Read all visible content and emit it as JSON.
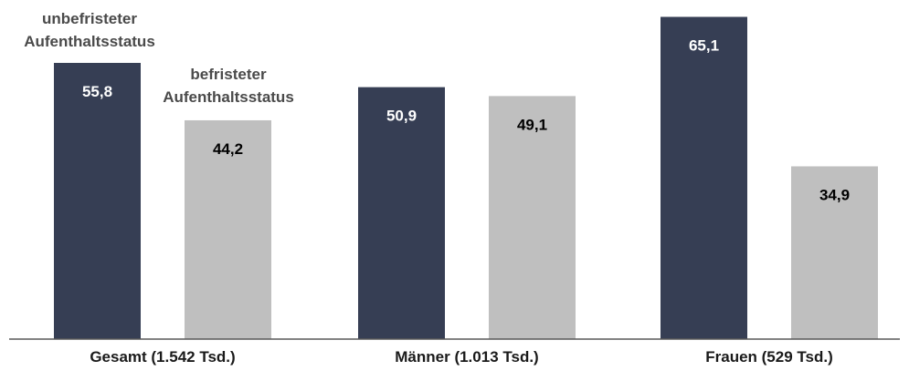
{
  "chart_data": {
    "type": "bar",
    "categories": [
      "Gesamt (1.542 Tsd.)",
      "Männer (1.013 Tsd.)",
      "Frauen (529 Tsd.)"
    ],
    "series": [
      {
        "name": "unbefristeter Aufenthaltsstatus",
        "name_lines": [
          "unbefristeter",
          "Aufenthaltsstatus"
        ],
        "values": [
          55.8,
          50.9,
          65.1
        ],
        "labels": [
          "55,8",
          "50,9",
          "65,1"
        ],
        "color": "#363e54",
        "label_color": "#ffffff"
      },
      {
        "name": "befristeter Aufenthaltsstatus",
        "name_lines": [
          "befristeter",
          "Aufenthaltsstatus"
        ],
        "values": [
          44.2,
          49.1,
          34.9
        ],
        "labels": [
          "44,2",
          "49,1",
          "34,9"
        ],
        "color": "#bfbfbf",
        "label_color": "#000000"
      }
    ],
    "ylim": [
      0,
      70
    ],
    "grid": false,
    "axis_color": "#595959"
  }
}
